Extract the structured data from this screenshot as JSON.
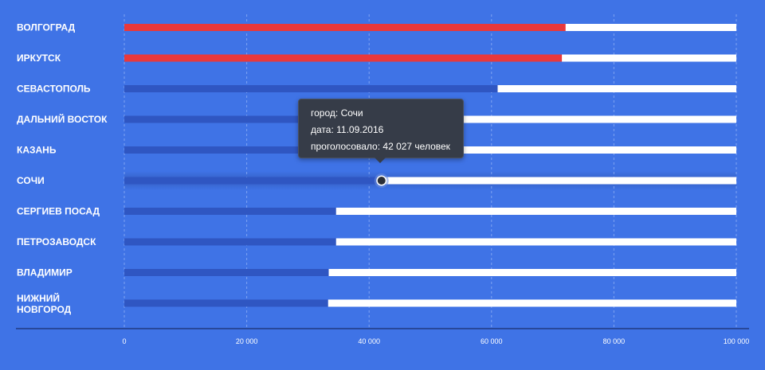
{
  "chart_data": {
    "type": "bar",
    "orientation": "horizontal",
    "categories": [
      "ВОЛГОГРАД",
      "ИРКУТСК",
      "СЕВАСТОПОЛЬ",
      "ДАЛЬНИЙ ВОСТОК",
      "КАЗАНЬ",
      "СОЧИ",
      "СЕРГИЕВ ПОСАД",
      "ПЕТРОЗАВОДСК",
      "ВЛАДИМИР",
      "НИЖНИЙ НОВГОРОД"
    ],
    "values": [
      72100,
      71500,
      61000,
      46000,
      45000,
      42027,
      34600,
      34600,
      33400,
      33300
    ],
    "highlighted": [
      true,
      true,
      false,
      false,
      false,
      false,
      false,
      false,
      false,
      false
    ],
    "x_ticks": [
      "0",
      "20 000",
      "40 000",
      "60 000",
      "80 000",
      "100 000"
    ],
    "xlim": [
      0,
      100000
    ],
    "grid": true,
    "title": "",
    "xlabel": "",
    "ylabel": ""
  },
  "tooltip": {
    "city_label": "город:",
    "city_value": "Сочи",
    "date_label": "дата:",
    "date_value": "11.09.2016",
    "votes_label": "проголосовало:",
    "votes_value": "42 027 человек"
  },
  "colors": {
    "background": "#3f73e6",
    "track": "#ffffff",
    "bar_default": "#2f56c2",
    "bar_highlight": "#e8383b",
    "grid": "#8fb0f5",
    "axis": "#1a2f6e"
  }
}
